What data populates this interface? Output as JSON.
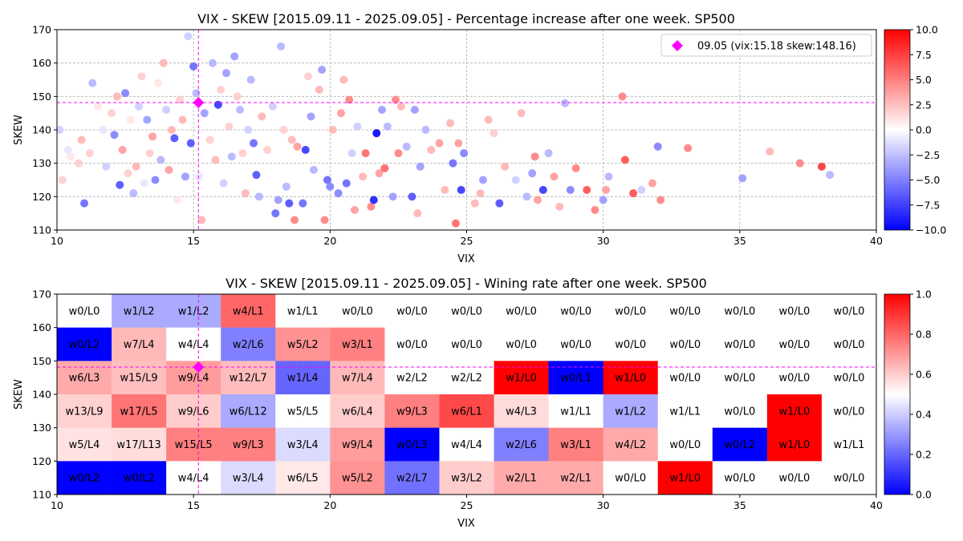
{
  "chart_data": [
    {
      "type": "scatter",
      "title": "VIX - SKEW [2015.09.11 - 2025.09.05]  - Percentage increase after one week. SP500",
      "xlabel": "VIX",
      "ylabel": "SKEW",
      "xlim": [
        10,
        40
      ],
      "ylim": [
        110,
        170
      ],
      "xticks": [
        "10",
        "15",
        "20",
        "25",
        "30",
        "35",
        "40"
      ],
      "yticks": [
        "110",
        "120",
        "130",
        "140",
        "150",
        "160",
        "170"
      ],
      "grid": true,
      "legend": {
        "position": "top-right",
        "label": "09.05 (vix:15.18 skew:148.16)",
        "marker_color": "#ff00ff"
      },
      "current": {
        "vix": 15.18,
        "skew": 148.16
      },
      "colorbar": {
        "min": -10,
        "max": 10,
        "ticks": [
          "10.0",
          "7.5",
          "5.0",
          "2.5",
          "0.0",
          "−2.5",
          "−5.0",
          "−7.5",
          "−10.0"
        ]
      },
      "points": [
        [
          10.1,
          140.0,
          -2
        ],
        [
          10.2,
          125.0,
          2
        ],
        [
          10.4,
          134.0,
          -1
        ],
        [
          10.5,
          132.0,
          1
        ],
        [
          10.8,
          130.0,
          2
        ],
        [
          10.9,
          137.0,
          3
        ],
        [
          11.0,
          118.0,
          -6
        ],
        [
          11.2,
          133.0,
          2
        ],
        [
          11.3,
          154.0,
          -3
        ],
        [
          11.5,
          147.0,
          1
        ],
        [
          11.7,
          140.0,
          -1
        ],
        [
          11.8,
          129.0,
          -2
        ],
        [
          11.9,
          123.0,
          0
        ],
        [
          12.0,
          145.0,
          2
        ],
        [
          12.1,
          138.5,
          -5
        ],
        [
          12.2,
          150.0,
          3
        ],
        [
          12.3,
          123.5,
          -7
        ],
        [
          12.4,
          134.0,
          4
        ],
        [
          12.5,
          151.0,
          -5
        ],
        [
          12.6,
          127.0,
          2
        ],
        [
          12.7,
          143.0,
          1
        ],
        [
          12.8,
          121.0,
          -3
        ],
        [
          12.9,
          129.0,
          3
        ],
        [
          13.0,
          147.0,
          -2
        ],
        [
          13.1,
          156.0,
          2
        ],
        [
          13.2,
          124.0,
          -1
        ],
        [
          13.3,
          143.0,
          -4
        ],
        [
          13.4,
          133.0,
          2
        ],
        [
          13.5,
          138.0,
          4
        ],
        [
          13.6,
          125.0,
          -5
        ],
        [
          13.7,
          154.0,
          1
        ],
        [
          13.8,
          131.0,
          -3
        ],
        [
          13.9,
          160.0,
          3
        ],
        [
          14.0,
          146.0,
          -2
        ],
        [
          14.1,
          128.0,
          4
        ],
        [
          14.2,
          140.0,
          3
        ],
        [
          14.3,
          137.5,
          -7
        ],
        [
          14.4,
          119.0,
          1
        ],
        [
          14.5,
          149.0,
          2
        ],
        [
          14.6,
          143.0,
          3
        ],
        [
          14.7,
          126.0,
          -4
        ],
        [
          14.8,
          168.0,
          -2
        ],
        [
          14.9,
          136.0,
          -7
        ],
        [
          15.0,
          159.0,
          -6
        ],
        [
          15.1,
          151.0,
          -3
        ],
        [
          15.2,
          126.0,
          -1
        ],
        [
          15.3,
          113.0,
          3
        ],
        [
          15.4,
          145.0,
          -4
        ],
        [
          15.6,
          137.0,
          2
        ],
        [
          15.7,
          160.0,
          -3
        ],
        [
          15.8,
          131.0,
          3
        ],
        [
          15.9,
          147.5,
          -8
        ],
        [
          16.0,
          152.0,
          2
        ],
        [
          16.1,
          124.0,
          -2
        ],
        [
          16.2,
          157.0,
          -4
        ],
        [
          16.3,
          141.0,
          2
        ],
        [
          16.4,
          132.0,
          -3
        ],
        [
          16.5,
          162.0,
          -4
        ],
        [
          16.6,
          150.0,
          2
        ],
        [
          16.7,
          146.0,
          -3
        ],
        [
          16.8,
          133.0,
          2
        ],
        [
          16.9,
          121.0,
          3
        ],
        [
          17.0,
          140.0,
          -2
        ],
        [
          17.1,
          155.0,
          -3
        ],
        [
          17.2,
          136.0,
          -6
        ],
        [
          17.3,
          126.5,
          -7
        ],
        [
          17.4,
          120.0,
          -3
        ],
        [
          17.5,
          144.0,
          3
        ],
        [
          17.7,
          134.0,
          2
        ],
        [
          17.9,
          147.0,
          -2
        ],
        [
          18.0,
          115.0,
          -6
        ],
        [
          18.1,
          119.0,
          -4
        ],
        [
          18.2,
          165.0,
          -3
        ],
        [
          18.3,
          140.0,
          2
        ],
        [
          18.4,
          123.0,
          -3
        ],
        [
          18.5,
          118.0,
          -7
        ],
        [
          18.6,
          137.0,
          3
        ],
        [
          18.7,
          113.0,
          5
        ],
        [
          18.8,
          135.0,
          4
        ],
        [
          19.0,
          118.0,
          -6
        ],
        [
          19.1,
          134.0,
          -8
        ],
        [
          19.2,
          156.0,
          2
        ],
        [
          19.3,
          144.0,
          -4
        ],
        [
          19.4,
          128.0,
          -3
        ],
        [
          19.6,
          152.0,
          3
        ],
        [
          19.7,
          158.0,
          -4
        ],
        [
          19.8,
          113.0,
          5
        ],
        [
          19.9,
          125.0,
          -6
        ],
        [
          20.0,
          123.0,
          -5
        ],
        [
          20.1,
          140.0,
          3
        ],
        [
          20.3,
          121.0,
          -5
        ],
        [
          20.4,
          145.0,
          4
        ],
        [
          20.5,
          155.0,
          3
        ],
        [
          20.6,
          124.0,
          -6
        ],
        [
          20.7,
          149.0,
          5
        ],
        [
          20.8,
          133.0,
          -2
        ],
        [
          20.9,
          116.0,
          4
        ],
        [
          21.0,
          141.0,
          -2
        ],
        [
          21.2,
          126.0,
          3
        ],
        [
          21.3,
          133.0,
          6
        ],
        [
          21.5,
          117.0,
          5
        ],
        [
          21.6,
          119.0,
          -9
        ],
        [
          21.7,
          139.0,
          -10
        ],
        [
          21.8,
          127.0,
          4
        ],
        [
          21.9,
          146.0,
          -4
        ],
        [
          22.0,
          128.5,
          6
        ],
        [
          22.1,
          141.0,
          -3
        ],
        [
          22.3,
          120.0,
          -4
        ],
        [
          22.4,
          149.0,
          5
        ],
        [
          22.5,
          133.0,
          5
        ],
        [
          22.6,
          147.0,
          3
        ],
        [
          22.8,
          135.0,
          -3
        ],
        [
          23.0,
          120.0,
          -7
        ],
        [
          23.1,
          146.0,
          -4
        ],
        [
          23.2,
          115.0,
          3
        ],
        [
          23.3,
          129.0,
          -4
        ],
        [
          23.5,
          140.0,
          -3
        ],
        [
          23.7,
          134.0,
          3
        ],
        [
          24.0,
          136.0,
          4
        ],
        [
          24.2,
          122.0,
          3
        ],
        [
          24.4,
          142.0,
          3
        ],
        [
          24.5,
          130.0,
          -6
        ],
        [
          24.6,
          112.0,
          6
        ],
        [
          24.7,
          136.0,
          4
        ],
        [
          24.8,
          122.0,
          -8
        ],
        [
          24.9,
          133.0,
          -5
        ],
        [
          25.3,
          118.0,
          3
        ],
        [
          25.5,
          121.0,
          3
        ],
        [
          25.6,
          125.0,
          -4
        ],
        [
          25.8,
          143.0,
          3
        ],
        [
          26.0,
          139.0,
          2
        ],
        [
          26.2,
          118.0,
          -7
        ],
        [
          26.4,
          129.0,
          3
        ],
        [
          26.8,
          125.0,
          -2
        ],
        [
          27.0,
          145.0,
          3
        ],
        [
          27.2,
          120.0,
          -3
        ],
        [
          27.4,
          127.0,
          -4
        ],
        [
          27.5,
          132.0,
          5
        ],
        [
          27.6,
          119.0,
          4
        ],
        [
          27.8,
          122.0,
          -8
        ],
        [
          28.0,
          133.0,
          -3
        ],
        [
          28.2,
          126.0,
          4
        ],
        [
          28.4,
          117.0,
          3
        ],
        [
          28.6,
          148.0,
          -3
        ],
        [
          28.8,
          122.0,
          -5
        ],
        [
          29.0,
          128.5,
          5
        ],
        [
          29.4,
          122.0,
          7
        ],
        [
          29.7,
          116.0,
          5
        ],
        [
          30.0,
          119.0,
          -4
        ],
        [
          30.1,
          122.0,
          4
        ],
        [
          30.2,
          126.0,
          -3
        ],
        [
          30.7,
          150.0,
          5
        ],
        [
          30.8,
          131.0,
          7
        ],
        [
          31.1,
          121.0,
          7
        ],
        [
          31.4,
          122.0,
          -2
        ],
        [
          31.8,
          124.0,
          4
        ],
        [
          32.0,
          135.0,
          -5
        ],
        [
          32.1,
          119.0,
          5
        ],
        [
          33.1,
          134.5,
          5
        ],
        [
          35.1,
          125.5,
          -4
        ],
        [
          36.1,
          133.5,
          3
        ],
        [
          37.2,
          130.0,
          5
        ],
        [
          38.0,
          129.0,
          8
        ],
        [
          38.3,
          126.5,
          -3
        ]
      ]
    },
    {
      "type": "heatmap",
      "title": "VIX - SKEW [2015.09.11 - 2025.09.05]  - Wining rate after one week. SP500",
      "xlabel": "VIX",
      "ylabel": "SKEW",
      "xlim": [
        10,
        40
      ],
      "ylim": [
        110,
        170
      ],
      "xticks": [
        "10",
        "15",
        "20",
        "25",
        "30",
        "35",
        "40"
      ],
      "yticks": [
        "110",
        "120",
        "130",
        "140",
        "150",
        "160",
        "170"
      ],
      "x_bins": [
        10,
        12,
        14,
        16,
        18,
        20,
        22,
        24,
        26,
        28,
        30,
        32,
        34,
        36,
        38,
        40
      ],
      "y_bins": [
        110,
        120,
        130,
        140,
        150,
        160,
        170
      ],
      "current": {
        "vix": 15.18,
        "skew": 148.16
      },
      "colorbar": {
        "min": 0,
        "max": 1,
        "ticks": [
          "1.0",
          "0.8",
          "0.6",
          "0.4",
          "0.2",
          "0.0"
        ]
      },
      "rows_top_to_bottom": [
        [
          "w0/L0",
          "w1/L2",
          "w1/L2",
          "w4/L1",
          "w1/L1",
          "w0/L0",
          "w0/L0",
          "w0/L0",
          "w0/L0",
          "w0/L0",
          "w0/L0",
          "w0/L0",
          "w0/L0",
          "w0/L0",
          "w0/L0"
        ],
        [
          "w0/L2",
          "w7/L4",
          "w4/L4",
          "w2/L6",
          "w5/L2",
          "w3/L1",
          "w0/L0",
          "w0/L0",
          "w0/L0",
          "w0/L0",
          "w0/L0",
          "w0/L0",
          "w0/L0",
          "w0/L0",
          "w0/L0"
        ],
        [
          "w6/L3",
          "w15/L9",
          "w9/L4",
          "w12/L7",
          "w1/L4",
          "w7/L4",
          "w2/L2",
          "w2/L2",
          "w1/L0",
          "w0/L1",
          "w1/L0",
          "w0/L0",
          "w0/L0",
          "w0/L0",
          "w0/L0"
        ],
        [
          "w13/L9",
          "w17/L5",
          "w9/L6",
          "w6/L12",
          "w5/L5",
          "w6/L4",
          "w9/L3",
          "w6/L1",
          "w4/L3",
          "w1/L1",
          "w1/L2",
          "w1/L1",
          "w0/L0",
          "w1/L0",
          "w0/L0"
        ],
        [
          "w5/L4",
          "w17/L13",
          "w15/L5",
          "w9/L3",
          "w3/L4",
          "w9/L4",
          "w0/L3",
          "w4/L4",
          "w2/L6",
          "w3/L1",
          "w4/L2",
          "w0/L0",
          "w0/L2",
          "w1/L0",
          "w1/L1"
        ],
        [
          "w0/L2",
          "w0/L2",
          "w4/L4",
          "w3/L4",
          "w6/L5",
          "w5/L2",
          "w2/L7",
          "w3/L2",
          "w2/L1",
          "w2/L1",
          "w0/L0",
          "w1/L0",
          "w0/L0",
          "w0/L0",
          "w0/L0"
        ]
      ]
    }
  ]
}
